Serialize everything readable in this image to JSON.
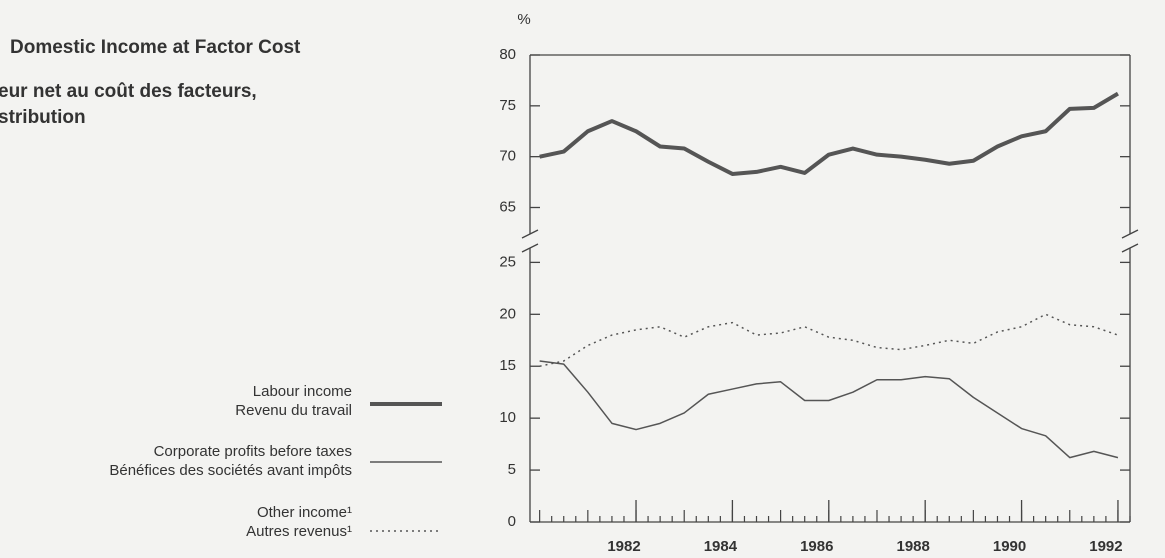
{
  "chart_data": [
    {
      "type": "line",
      "title": "Domestic Income at Factor Cost",
      "subtitle": [
        "eur net au coût des facteurs,",
        "stribution"
      ],
      "y_unit": "%",
      "xlim": [
        1979.8,
        1992.25
      ],
      "ylim": [
        62,
        80
      ],
      "yticks": [
        65,
        70,
        75,
        80
      ],
      "x": [
        1980.0,
        1980.5,
        1981.0,
        1981.5,
        1982.0,
        1982.5,
        1983.0,
        1983.5,
        1984.0,
        1984.5,
        1985.0,
        1985.5,
        1986.0,
        1986.5,
        1987.0,
        1987.5,
        1988.0,
        1988.5,
        1989.0,
        1989.5,
        1990.0,
        1990.5,
        1991.0,
        1991.5,
        1992.0
      ],
      "series": [
        {
          "name": "Labour income",
          "name_fr": "Revenu du travail",
          "color": "#555555",
          "style": "thick",
          "values": [
            70,
            70.5,
            72.5,
            73.5,
            72.5,
            71,
            70.8,
            69.5,
            68.3,
            68.5,
            69,
            68.4,
            70.2,
            70.8,
            70.2,
            70,
            69.7,
            69.3,
            69.6,
            71,
            72,
            72.5,
            74.7,
            74.8,
            76.2
          ]
        }
      ]
    },
    {
      "type": "line",
      "xlim": [
        1979.8,
        1992.25
      ],
      "xticks": [
        1982,
        1984,
        1986,
        1988,
        1990,
        1992
      ],
      "ylim": [
        0,
        26
      ],
      "yticks": [
        0,
        5,
        10,
        15,
        20,
        25
      ],
      "x": [
        1980.0,
        1980.5,
        1981.0,
        1981.5,
        1982.0,
        1982.5,
        1983.0,
        1983.5,
        1984.0,
        1984.5,
        1985.0,
        1985.5,
        1986.0,
        1986.5,
        1987.0,
        1987.5,
        1988.0,
        1988.5,
        1989.0,
        1989.5,
        1990.0,
        1990.5,
        1991.0,
        1991.5,
        1992.0
      ],
      "series": [
        {
          "name": "Corporate profits before taxes",
          "name_fr": "Bénéfices des sociétés avant impôts",
          "color": "#555555",
          "style": "thin",
          "values": [
            15.5,
            15.2,
            12.5,
            9.5,
            8.9,
            9.5,
            10.5,
            12.3,
            12.8,
            13.3,
            13.5,
            11.7,
            11.7,
            12.5,
            13.7,
            13.7,
            14.0,
            13.8,
            12.0,
            10.5,
            9.0,
            8.3,
            6.2,
            6.8,
            6.2
          ]
        },
        {
          "name": "Other income¹",
          "name_fr": "Autres revenus¹",
          "color": "#555555",
          "style": "dotted",
          "values": [
            15,
            15.5,
            17,
            18,
            18.5,
            18.8,
            17.8,
            18.8,
            19.2,
            18,
            18.2,
            18.8,
            17.8,
            17.5,
            16.8,
            16.6,
            17.0,
            17.5,
            17.2,
            18.3,
            18.8,
            20.0,
            19.0,
            18.8,
            18.0
          ]
        }
      ]
    }
  ]
}
